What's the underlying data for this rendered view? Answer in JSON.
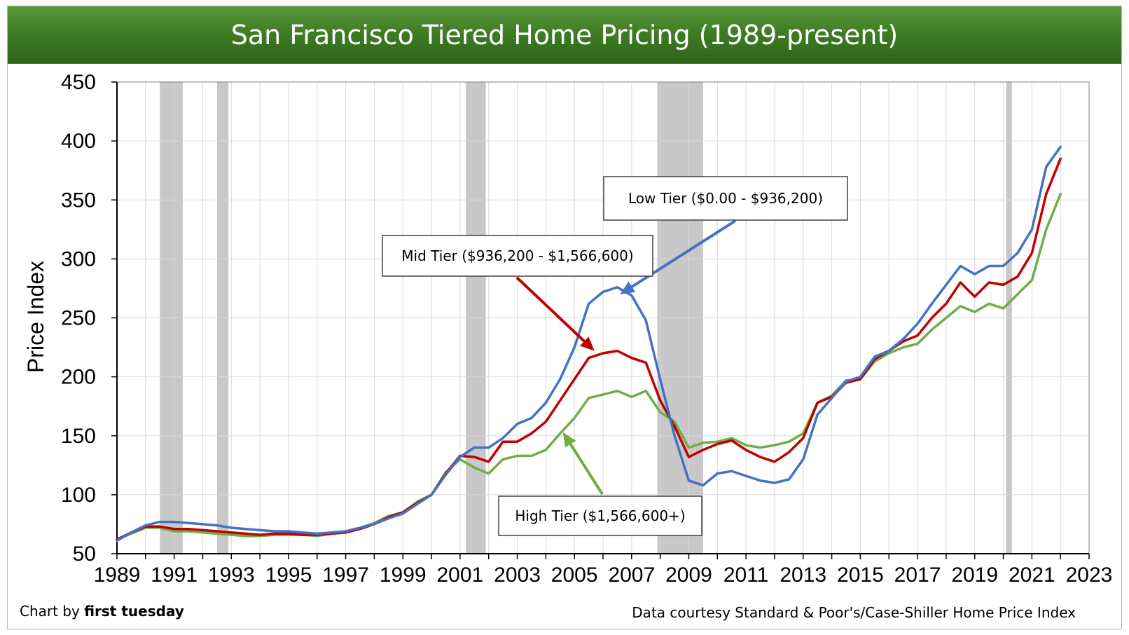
{
  "header": {
    "title": "San Francisco Tiered Home Pricing (1989-present)"
  },
  "footer": {
    "credit_prefix": "Chart by ",
    "credit_brand": "first tuesday",
    "source": "Data courtesy Standard & Poor's/Case-Shiller Home Price Index"
  },
  "colors": {
    "low": "#4472c4",
    "mid": "#c00000",
    "high": "#70ad47",
    "recession": "#c8c8c8",
    "title_bar": "#3f7d25"
  },
  "chart_data": {
    "type": "line",
    "title": "San Francisco Tiered Home Pricing (1989-present)",
    "xlabel": "",
    "ylabel": "Price Index",
    "xlim": [
      1989,
      2023
    ],
    "ylim": [
      50,
      450
    ],
    "x_ticks": [
      "1989",
      "1991",
      "1993",
      "1995",
      "1997",
      "1999",
      "2001",
      "2003",
      "2005",
      "2007",
      "2009",
      "2011",
      "2013",
      "2015",
      "2017",
      "2019",
      "2021",
      "2023"
    ],
    "y_ticks": [
      "50",
      "100",
      "150",
      "200",
      "250",
      "300",
      "350",
      "400",
      "450"
    ],
    "grid": true,
    "recession_bands": [
      [
        1990.5,
        1991.3
      ],
      [
        1992.5,
        1992.9
      ],
      [
        2001.2,
        2001.9
      ],
      [
        2007.9,
        2009.5
      ],
      [
        2020.1,
        2020.3
      ]
    ],
    "x": [
      1989,
      1989.5,
      1990,
      1990.5,
      1991,
      1991.5,
      1992,
      1992.5,
      1993,
      1993.5,
      1994,
      1994.5,
      1995,
      1995.5,
      1996,
      1996.5,
      1997,
      1997.5,
      1998,
      1998.5,
      1999,
      1999.5,
      2000,
      2000.5,
      2001,
      2001.5,
      2002,
      2002.5,
      2003,
      2003.5,
      2004,
      2004.5,
      2005,
      2005.5,
      2006,
      2006.5,
      2007,
      2007.5,
      2008,
      2008.5,
      2009,
      2009.5,
      2010,
      2010.5,
      2011,
      2011.5,
      2012,
      2012.5,
      2013,
      2013.5,
      2014,
      2014.5,
      2015,
      2015.5,
      2016,
      2016.5,
      2017,
      2017.5,
      2018,
      2018.5,
      2019,
      2019.5,
      2020,
      2020.5,
      2021,
      2021.5,
      2022
    ],
    "series": [
      {
        "name": "Low Tier",
        "color": "#4472c4",
        "values": [
          61,
          68,
          74,
          77,
          77,
          76,
          75,
          74,
          72,
          71,
          70,
          69,
          69,
          68,
          67,
          68,
          69,
          72,
          75,
          80,
          84,
          92,
          100,
          117,
          132,
          140,
          140,
          148,
          160,
          165,
          178,
          198,
          225,
          262,
          272,
          276,
          269,
          248,
          198,
          150,
          112,
          108,
          118,
          120,
          116,
          112,
          110,
          113,
          130,
          168,
          182,
          196,
          200,
          217,
          222,
          232,
          245,
          262,
          278,
          294,
          287,
          294,
          294,
          305,
          325,
          378,
          395
        ]
      },
      {
        "name": "Mid Tier",
        "color": "#c00000",
        "values": [
          62,
          68,
          73,
          73,
          71,
          71,
          70,
          69,
          68,
          67,
          66,
          67,
          67,
          66,
          66,
          67,
          68,
          71,
          75,
          81,
          85,
          93,
          100,
          118,
          133,
          132,
          128,
          145,
          145,
          152,
          162,
          180,
          198,
          216,
          220,
          222,
          216,
          212,
          180,
          158,
          132,
          138,
          143,
          146,
          138,
          132,
          128,
          136,
          148,
          178,
          183,
          195,
          198,
          215,
          222,
          230,
          235,
          250,
          262,
          280,
          268,
          280,
          278,
          285,
          305,
          355,
          385
        ]
      },
      {
        "name": "High Tier",
        "color": "#70ad47",
        "values": [
          62,
          67,
          72,
          72,
          69,
          69,
          68,
          67,
          66,
          65,
          65,
          66,
          66,
          66,
          65,
          67,
          68,
          72,
          76,
          82,
          85,
          94,
          100,
          119,
          130,
          123,
          118,
          130,
          133,
          133,
          138,
          152,
          165,
          182,
          185,
          188,
          183,
          188,
          170,
          162,
          140,
          144,
          145,
          148,
          142,
          140,
          142,
          145,
          152,
          178,
          184,
          197,
          198,
          213,
          220,
          225,
          228,
          240,
          250,
          260,
          255,
          262,
          258,
          270,
          282,
          325,
          355
        ]
      }
    ],
    "annotations": [
      {
        "label": "Low Tier ($0.00 - $936,200)",
        "series": "Low Tier",
        "point_to": [
          2006.6,
          270
        ]
      },
      {
        "label": "Mid Tier ($936,200 - $1,566,600)",
        "series": "Mid Tier",
        "point_to": [
          2005.7,
          222
        ]
      },
      {
        "label": "High Tier ($1,566,600+)",
        "series": "High Tier",
        "point_to": [
          2004.6,
          153
        ]
      }
    ]
  }
}
